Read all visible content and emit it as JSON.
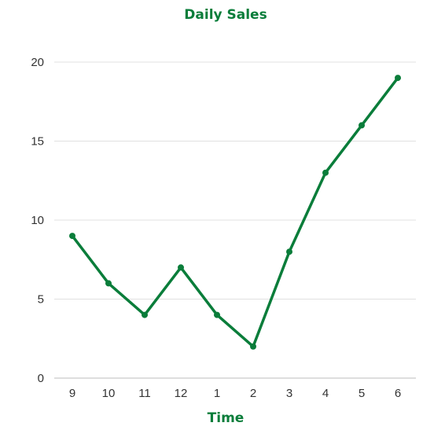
{
  "chart_data": {
    "type": "line",
    "title": "Daily Sales",
    "xlabel": "Time",
    "ylabel": "",
    "categories": [
      "9",
      "10",
      "11",
      "12",
      "1",
      "2",
      "3",
      "4",
      "5",
      "6"
    ],
    "series": [
      {
        "values": [
          9,
          6,
          4,
          7,
          4,
          2,
          8,
          13,
          16,
          19
        ]
      }
    ],
    "ylim": [
      0,
      20
    ],
    "yticks": [
      0,
      5,
      10,
      15,
      20
    ],
    "grid": "horizontal",
    "legend": "none",
    "colors": {
      "line": "#0a7d3a",
      "title": "#0a7d3a",
      "grid": "#e0e0e0",
      "axis": "#bdbdbd",
      "tick_text": "#333333"
    }
  }
}
